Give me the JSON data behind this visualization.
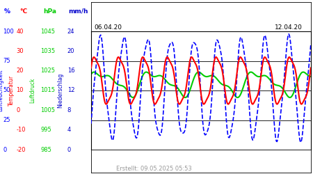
{
  "date_left": "06.04.20",
  "date_right": "12.04.20",
  "footer": "Erstellt: 09.05.2025 05:53",
  "fig_width": 4.5,
  "fig_height": 2.5,
  "bg_color": "#ffffff",
  "unit_labels": [
    {
      "text": "%",
      "color": "#0000ff"
    },
    {
      "text": "°C",
      "color": "#ff0000"
    },
    {
      "text": "hPa",
      "color": "#00cc00"
    },
    {
      "text": "mm/h",
      "color": "#0000cc"
    }
  ],
  "rot_labels": [
    {
      "text": "Luftfeuchtigkeit",
      "color": "#0000ff"
    },
    {
      "text": "Temperatur",
      "color": "#ff0000"
    },
    {
      "text": "Luftdruck",
      "color": "#00cc00"
    },
    {
      "text": "Niederschlag",
      "color": "#0000cc"
    }
  ],
  "hum_ticks": [
    0,
    25,
    50,
    75,
    100
  ],
  "temp_ticks": [
    -20,
    -10,
    0,
    10,
    20,
    30,
    40
  ],
  "pres_ticks": [
    985,
    995,
    1005,
    1015,
    1025,
    1035,
    1045
  ],
  "prec_ticks": [
    0,
    4,
    8,
    12,
    16,
    20,
    24
  ],
  "hum_min": 0,
  "hum_max": 100,
  "temp_min": -20,
  "temp_max": 40,
  "pres_min": 985,
  "pres_max": 1045,
  "prec_min": 0,
  "prec_max": 24,
  "grid_color": "#000000",
  "line_red_color": "#ff0000",
  "line_green_color": "#00cc00",
  "line_blue_color": "#0000ff",
  "n_points": 300
}
